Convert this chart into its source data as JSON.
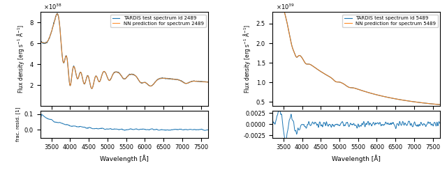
{
  "spectrum1_id": 2489,
  "spectrum2_id": 5489,
  "wave_min": 3200,
  "wave_max": 7700,
  "n_points": 900,
  "blue_color": "#1f77b4",
  "orange_color": "#ff7f0e",
  "ylabel_main": "Flux density [erg s$^{-1}$ Å$^{-1}$]",
  "ylabel_resid": "frac. resid. [1]",
  "xlabel": "Wavelength [Å]",
  "legend1_line1": "TARDIS test spectrum id 2489",
  "legend1_line2": "NN prediction for spectrum 2489",
  "legend2_line1": "TARDIS test spectrum id 5489",
  "legend2_line2": "NN prediction for spectrum 5489",
  "flux1_ylim": [
    0,
    9
  ],
  "flux2_ylim": [
    0.4,
    2.8
  ],
  "resid1_ylim": [
    -0.05,
    0.12
  ],
  "resid2_ylim": [
    -0.003,
    0.003
  ],
  "resid1_yticks": [
    0.0,
    0.1
  ],
  "resid2_yticks": [
    -0.0025,
    0.0,
    0.0025
  ],
  "xticks": [
    3500,
    4000,
    4500,
    5000,
    5500,
    6000,
    6500,
    7000,
    7500
  ]
}
